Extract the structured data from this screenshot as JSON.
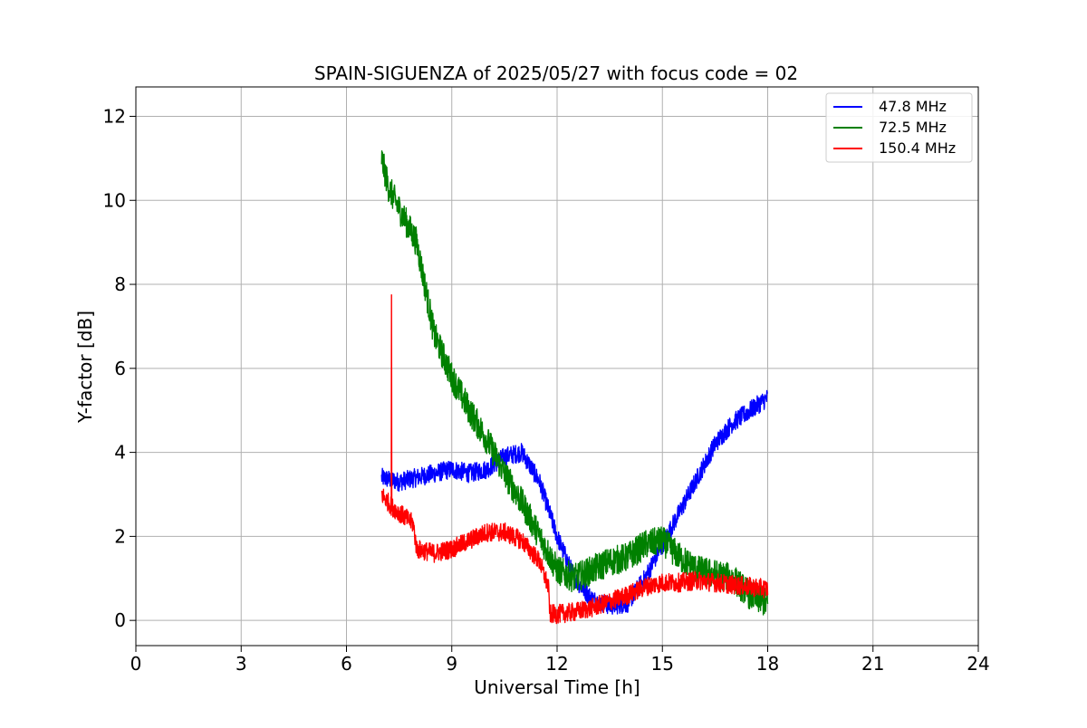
{
  "chart_data": {
    "type": "line",
    "title": "SPAIN-SIGUENZA of 2025/05/27 with focus code = 02",
    "xlabel": "Universal Time [h]",
    "ylabel": "Y-factor [dB]",
    "xlim": [
      0,
      24
    ],
    "ylim": [
      -0.6,
      12.7
    ],
    "xticks": [
      0,
      3,
      6,
      9,
      12,
      15,
      18,
      21,
      24
    ],
    "yticks": [
      0,
      2,
      4,
      6,
      8,
      10,
      12
    ],
    "grid": true,
    "legend_position": "top-right",
    "series": [
      {
        "name": "  47.8 MHz",
        "color": "#0000ff",
        "noise": 0.45,
        "x": [
          7.0,
          7.5,
          8.0,
          8.5,
          9.0,
          9.5,
          10.0,
          10.5,
          11.0,
          11.5,
          12.0,
          12.5,
          13.0,
          13.5,
          14.0,
          14.5,
          15.0,
          15.5,
          16.0,
          16.5,
          17.0,
          17.5,
          18.0
        ],
        "values": [
          3.4,
          3.3,
          3.4,
          3.5,
          3.6,
          3.5,
          3.6,
          3.9,
          4.0,
          3.3,
          2.0,
          1.0,
          0.5,
          0.35,
          0.4,
          1.0,
          1.8,
          2.6,
          3.4,
          4.2,
          4.7,
          5.0,
          5.3
        ]
      },
      {
        "name": "  72.5 MHz",
        "color": "#008000",
        "noise": 0.7,
        "x": [
          7.0,
          7.2,
          7.5,
          8.0,
          8.5,
          9.0,
          9.5,
          10.0,
          10.5,
          11.0,
          11.5,
          12.0,
          12.5,
          13.0,
          13.5,
          14.0,
          14.5,
          15.0,
          15.5,
          16.0,
          16.5,
          17.0,
          17.5,
          18.0
        ],
        "values": [
          11.0,
          10.3,
          9.8,
          9.0,
          6.8,
          5.8,
          5.0,
          4.3,
          3.5,
          2.8,
          2.0,
          1.2,
          1.0,
          1.2,
          1.4,
          1.5,
          1.8,
          1.9,
          1.5,
          1.2,
          1.1,
          1.0,
          0.6,
          0.4
        ]
      },
      {
        "name": "150.4 MHz",
        "color": "#ff0000",
        "noise": 0.45,
        "x": [
          7.0,
          7.3,
          7.6,
          7.9,
          8.0,
          8.5,
          9.0,
          9.5,
          10.0,
          10.5,
          11.0,
          11.5,
          11.75,
          11.8,
          12.0,
          12.5,
          13.0,
          13.5,
          14.0,
          14.5,
          15.0,
          15.5,
          16.0,
          16.5,
          17.0,
          17.5,
          18.0
        ],
        "values": [
          3.0,
          2.7,
          2.5,
          2.3,
          1.7,
          1.6,
          1.7,
          1.9,
          2.1,
          2.1,
          1.9,
          1.4,
          0.8,
          0.15,
          0.15,
          0.2,
          0.3,
          0.45,
          0.6,
          0.8,
          0.9,
          0.9,
          0.95,
          0.9,
          0.85,
          0.8,
          0.75
        ]
      }
    ],
    "spike": {
      "series_index": 2,
      "x": 7.28,
      "y": 7.75
    }
  }
}
